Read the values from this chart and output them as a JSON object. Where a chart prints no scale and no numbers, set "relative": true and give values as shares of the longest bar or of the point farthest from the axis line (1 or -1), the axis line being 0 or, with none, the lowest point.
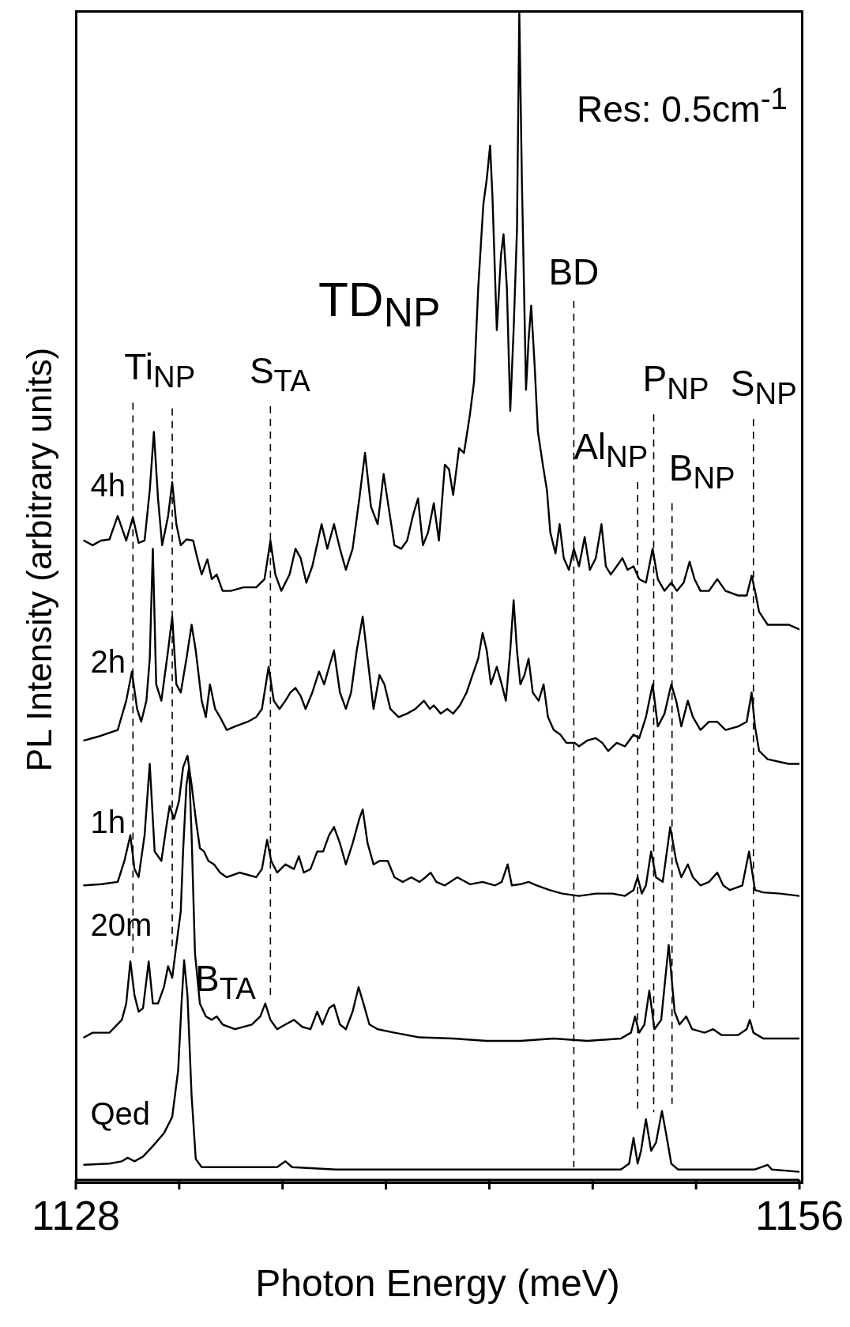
{
  "chart_data": {
    "type": "line",
    "relative": true,
    "xlabel": "Photon Energy (meV)",
    "ylabel": "PL Intensity (arbitrary units)",
    "xlim": [
      1128,
      1156
    ],
    "xticks": [
      1128,
      {
        "value": 1132,
        "label": null
      },
      {
        "value": 1136,
        "label": null
      },
      {
        "value": 1140,
        "label": null
      },
      {
        "value": 1144,
        "label": null
      },
      {
        "value": 1148,
        "label": null
      },
      {
        "value": 1152,
        "label": null
      },
      1156
    ],
    "annotations": [
      "Res: 0.5cm$^{-1}$",
      "TD$_{NP}$",
      {
        "text": "B$_{TA}$",
        "x": 1132.19,
        "y": 0.188
      }
    ],
    "ref_lines": [
      {
        "axis": "x",
        "value": 1130.21,
        "label": "Ti$_{NP}$",
        "line_style": "dashed"
      },
      {
        "axis": "x",
        "value": 1131.73,
        "label": null,
        "line_style": "dashed"
      },
      {
        "axis": "x",
        "value": 1135.53,
        "label": "S$_{TA}$",
        "line_style": "dashed"
      },
      {
        "axis": "x",
        "value": 1147.27,
        "label": "BD",
        "line_style": "dashed"
      },
      {
        "axis": "x",
        "value": 1149.74,
        "label": "Al$_{NP}$",
        "line_style": "dashed"
      },
      {
        "axis": "x",
        "value": 1150.36,
        "label": "P$_{NP}$",
        "line_style": "dashed"
      },
      {
        "axis": "x",
        "value": 1151.07,
        "label": "B$_{NP}$",
        "line_style": "dashed"
      },
      {
        "axis": "x",
        "value": 1154.22,
        "label": "S$_{NP}$",
        "line_style": "dashed"
      }
    ],
    "series": [
      {
        "name": "4h",
        "color": "#000000",
        "x": [
          1128.32,
          1128.65,
          1128.97,
          1129.3,
          1129.62,
          1129.95,
          1130.21,
          1130.43,
          1130.66,
          1130.86,
          1131.02,
          1131.18,
          1131.34,
          1131.57,
          1131.73,
          1131.89,
          1132.06,
          1132.28,
          1132.54,
          1132.7,
          1132.87,
          1133.09,
          1133.26,
          1133.45,
          1133.68,
          1134.0,
          1134.49,
          1134.98,
          1135.3,
          1135.53,
          1135.72,
          1135.95,
          1136.27,
          1136.5,
          1136.7,
          1136.92,
          1137.15,
          1137.51,
          1137.73,
          1137.99,
          1138.22,
          1138.45,
          1138.71,
          1138.97,
          1139.19,
          1139.42,
          1139.68,
          1139.91,
          1140.1,
          1140.33,
          1140.59,
          1140.82,
          1141.04,
          1141.24,
          1141.43,
          1141.63,
          1141.85,
          1142.05,
          1142.28,
          1142.44,
          1142.6,
          1142.83,
          1143.02,
          1143.25,
          1143.41,
          1143.57,
          1143.77,
          1143.9,
          1144.03,
          1144.12,
          1144.29,
          1144.45,
          1144.55,
          1144.68,
          1144.81,
          1144.94,
          1145.07,
          1145.16,
          1145.26,
          1145.42,
          1145.52,
          1145.62,
          1145.75,
          1145.88,
          1146.07,
          1146.23,
          1146.36,
          1146.56,
          1146.72,
          1146.88,
          1147.08,
          1147.27,
          1147.47,
          1147.69,
          1147.89,
          1148.12,
          1148.34,
          1148.51,
          1148.7,
          1148.93,
          1149.15,
          1149.35,
          1149.58,
          1149.8,
          1150.06,
          1150.32,
          1150.52,
          1150.78,
          1151.04,
          1151.26,
          1151.52,
          1151.75,
          1151.94,
          1152.17,
          1152.5,
          1152.82,
          1153.14,
          1153.63,
          1153.96,
          1154.15,
          1154.28,
          1154.44,
          1154.77,
          1155.58,
          1156.0
        ],
        "values": [
          0.547,
          0.543,
          0.547,
          0.548,
          0.568,
          0.547,
          0.567,
          0.545,
          0.547,
          0.59,
          0.64,
          0.583,
          0.543,
          0.568,
          0.597,
          0.561,
          0.543,
          0.548,
          0.547,
          0.532,
          0.518,
          0.531,
          0.514,
          0.518,
          0.504,
          0.504,
          0.507,
          0.507,
          0.514,
          0.547,
          0.518,
          0.504,
          0.518,
          0.54,
          0.532,
          0.511,
          0.525,
          0.561,
          0.54,
          0.561,
          0.54,
          0.522,
          0.54,
          0.583,
          0.622,
          0.576,
          0.561,
          0.604,
          0.576,
          0.543,
          0.54,
          0.547,
          0.568,
          0.583,
          0.543,
          0.554,
          0.579,
          0.547,
          0.612,
          0.608,
          0.586,
          0.626,
          0.622,
          0.655,
          0.683,
          0.763,
          0.835,
          0.856,
          0.885,
          0.842,
          0.727,
          0.791,
          0.809,
          0.763,
          0.658,
          0.727,
          0.813,
          1,
          0.856,
          0.676,
          0.719,
          0.748,
          0.698,
          0.64,
          0.612,
          0.59,
          0.554,
          0.536,
          0.561,
          0.532,
          0.522,
          0.54,
          0.525,
          0.55,
          0.522,
          0.532,
          0.561,
          0.525,
          0.518,
          0.525,
          0.532,
          0.522,
          0.525,
          0.514,
          0.511,
          0.54,
          0.514,
          0.504,
          0.511,
          0.504,
          0.511,
          0.529,
          0.514,
          0.504,
          0.504,
          0.514,
          0.504,
          0.5,
          0.5,
          0.517,
          0.504,
          0.486,
          0.475,
          0.475,
          0.471
        ]
      },
      {
        "name": "2h",
        "color": "#000000",
        "x": [
          1128.32,
          1128.97,
          1129.62,
          1129.95,
          1130.17,
          1130.37,
          1130.53,
          1130.73,
          1130.86,
          1130.98,
          1131.11,
          1131.31,
          1131.57,
          1131.73,
          1131.89,
          1132.06,
          1132.28,
          1132.48,
          1132.64,
          1132.87,
          1133.03,
          1133.19,
          1133.39,
          1133.58,
          1133.84,
          1134.16,
          1134.65,
          1134.98,
          1135.2,
          1135.46,
          1135.66,
          1135.88,
          1136.11,
          1136.3,
          1136.5,
          1136.7,
          1136.89,
          1137.15,
          1137.41,
          1137.61,
          1137.8,
          1137.99,
          1138.22,
          1138.45,
          1138.65,
          1138.87,
          1139.1,
          1139.29,
          1139.52,
          1139.75,
          1139.94,
          1140.17,
          1140.49,
          1140.82,
          1141.14,
          1141.47,
          1141.7,
          1141.85,
          1142.12,
          1142.37,
          1142.6,
          1142.86,
          1143.12,
          1143.35,
          1143.57,
          1143.74,
          1143.9,
          1144.06,
          1144.29,
          1144.48,
          1144.64,
          1144.81,
          1144.94,
          1145.07,
          1145.2,
          1145.36,
          1145.52,
          1145.68,
          1145.91,
          1146.1,
          1146.27,
          1146.49,
          1146.75,
          1146.98,
          1147.3,
          1147.47,
          1147.79,
          1148.12,
          1148.37,
          1148.6,
          1148.93,
          1149.25,
          1149.58,
          1149.8,
          1150.06,
          1150.32,
          1150.52,
          1150.78,
          1151.04,
          1151.23,
          1151.43,
          1151.68,
          1151.88,
          1152.17,
          1152.5,
          1152.82,
          1153.14,
          1153.63,
          1153.96,
          1154.15,
          1154.28,
          1154.44,
          1154.77,
          1155.58,
          1156.0
        ],
        "values": [
          0.376,
          0.38,
          0.385,
          0.41,
          0.435,
          0.403,
          0.392,
          0.41,
          0.446,
          0.54,
          0.424,
          0.41,
          0.453,
          0.482,
          0.424,
          0.417,
          0.446,
          0.475,
          0.453,
          0.41,
          0.396,
          0.424,
          0.403,
          0.396,
          0.385,
          0.388,
          0.392,
          0.396,
          0.403,
          0.439,
          0.41,
          0.403,
          0.41,
          0.417,
          0.421,
          0.414,
          0.403,
          0.417,
          0.435,
          0.424,
          0.439,
          0.453,
          0.417,
          0.403,
          0.417,
          0.453,
          0.482,
          0.446,
          0.403,
          0.432,
          0.424,
          0.403,
          0.396,
          0.399,
          0.403,
          0.41,
          0.403,
          0.406,
          0.399,
          0.403,
          0.399,
          0.406,
          0.417,
          0.432,
          0.446,
          0.468,
          0.453,
          0.424,
          0.439,
          0.424,
          0.41,
          0.453,
          0.496,
          0.453,
          0.424,
          0.432,
          0.446,
          0.417,
          0.41,
          0.424,
          0.396,
          0.385,
          0.381,
          0.374,
          0.374,
          0.371,
          0.376,
          0.378,
          0.374,
          0.367,
          0.374,
          0.371,
          0.381,
          0.378,
          0.396,
          0.424,
          0.388,
          0.399,
          0.424,
          0.41,
          0.388,
          0.41,
          0.396,
          0.385,
          0.392,
          0.392,
          0.385,
          0.388,
          0.392,
          0.417,
          0.388,
          0.367,
          0.36,
          0.356,
          0.356
        ]
      },
      {
        "name": "1h",
        "color": "#000000",
        "x": [
          1128.32,
          1128.97,
          1129.62,
          1129.88,
          1130.11,
          1130.27,
          1130.43,
          1130.66,
          1130.86,
          1131.05,
          1131.31,
          1131.5,
          1131.63,
          1131.8,
          1131.99,
          1132.15,
          1132.32,
          1132.48,
          1132.64,
          1132.8,
          1132.96,
          1133.13,
          1133.35,
          1133.58,
          1133.84,
          1134.33,
          1134.98,
          1135.2,
          1135.4,
          1135.56,
          1135.79,
          1136.11,
          1136.44,
          1136.63,
          1136.82,
          1137.08,
          1137.34,
          1137.57,
          1137.8,
          1137.99,
          1138.22,
          1138.45,
          1138.71,
          1138.97,
          1139.1,
          1139.29,
          1139.52,
          1139.75,
          1140.07,
          1140.33,
          1140.65,
          1140.98,
          1141.3,
          1141.53,
          1141.73,
          1141.95,
          1142.28,
          1142.76,
          1143.25,
          1143.74,
          1144.22,
          1144.48,
          1144.71,
          1144.87,
          1145.2,
          1145.52,
          1145.84,
          1146.33,
          1146.82,
          1147.47,
          1148.12,
          1148.77,
          1149.25,
          1149.58,
          1149.74,
          1149.9,
          1150.06,
          1150.26,
          1150.45,
          1150.71,
          1151.0,
          1151.23,
          1151.43,
          1151.68,
          1151.88,
          1152.17,
          1152.5,
          1152.82,
          1153.05,
          1153.31,
          1153.79,
          1154.05,
          1154.28,
          1154.6,
          1155.25,
          1156.0
        ],
        "values": [
          0.252,
          0.253,
          0.255,
          0.273,
          0.295,
          0.266,
          0.259,
          0.295,
          0.356,
          0.281,
          0.273,
          0.302,
          0.32,
          0.309,
          0.324,
          0.353,
          0.363,
          0.338,
          0.309,
          0.284,
          0.281,
          0.273,
          0.27,
          0.263,
          0.259,
          0.263,
          0.259,
          0.266,
          0.291,
          0.273,
          0.263,
          0.27,
          0.266,
          0.277,
          0.263,
          0.266,
          0.281,
          0.281,
          0.295,
          0.302,
          0.288,
          0.27,
          0.288,
          0.309,
          0.317,
          0.288,
          0.27,
          0.273,
          0.273,
          0.259,
          0.255,
          0.259,
          0.255,
          0.259,
          0.263,
          0.255,
          0.252,
          0.259,
          0.253,
          0.255,
          0.252,
          0.255,
          0.27,
          0.252,
          0.253,
          0.255,
          0.252,
          0.248,
          0.245,
          0.243,
          0.245,
          0.245,
          0.243,
          0.248,
          0.259,
          0.245,
          0.252,
          0.281,
          0.259,
          0.255,
          0.302,
          0.273,
          0.259,
          0.27,
          0.259,
          0.252,
          0.255,
          0.263,
          0.252,
          0.248,
          0.252,
          0.281,
          0.248,
          0.246,
          0.245,
          0.243
        ]
      },
      {
        "name": "20m",
        "color": "#000000",
        "x": [
          1128.32,
          1128.65,
          1129.3,
          1129.78,
          1129.95,
          1130.11,
          1130.27,
          1130.43,
          1130.6,
          1130.82,
          1130.98,
          1131.18,
          1131.41,
          1131.57,
          1131.73,
          1131.89,
          1132.06,
          1132.15,
          1132.28,
          1132.38,
          1132.48,
          1132.61,
          1132.8,
          1133.03,
          1133.26,
          1133.45,
          1133.68,
          1134.16,
          1134.81,
          1135.14,
          1135.33,
          1135.53,
          1135.79,
          1136.11,
          1136.44,
          1136.76,
          1137.08,
          1137.34,
          1137.54,
          1137.8,
          1137.99,
          1138.22,
          1138.45,
          1138.71,
          1138.94,
          1139.13,
          1139.36,
          1139.68,
          1140.33,
          1141.3,
          1142.6,
          1143.9,
          1145.2,
          1146.49,
          1147.79,
          1149.09,
          1149.48,
          1149.64,
          1149.8,
          1150.0,
          1150.19,
          1150.39,
          1150.65,
          1150.94,
          1151.17,
          1151.36,
          1151.62,
          1151.85,
          1152.33,
          1152.66,
          1152.98,
          1153.63,
          1153.96,
          1154.08,
          1154.22,
          1154.6,
          1156.0
        ],
        "values": [
          0.122,
          0.126,
          0.126,
          0.137,
          0.151,
          0.187,
          0.158,
          0.144,
          0.147,
          0.187,
          0.151,
          0.151,
          0.165,
          0.183,
          0.173,
          0.201,
          0.23,
          0.281,
          0.338,
          0.353,
          0.295,
          0.194,
          0.151,
          0.14,
          0.137,
          0.14,
          0.133,
          0.129,
          0.133,
          0.14,
          0.151,
          0.137,
          0.129,
          0.133,
          0.137,
          0.131,
          0.129,
          0.144,
          0.133,
          0.147,
          0.15,
          0.133,
          0.129,
          0.144,
          0.165,
          0.151,
          0.133,
          0.129,
          0.126,
          0.122,
          0.121,
          0.119,
          0.119,
          0.121,
          0.119,
          0.121,
          0.126,
          0.14,
          0.126,
          0.133,
          0.162,
          0.129,
          0.137,
          0.201,
          0.144,
          0.133,
          0.14,
          0.129,
          0.126,
          0.129,
          0.124,
          0.124,
          0.129,
          0.137,
          0.126,
          0.121,
          0.121
        ]
      },
      {
        "name": "Qed",
        "color": "#000000",
        "x": [
          1128.32,
          1129.3,
          1129.78,
          1130.01,
          1130.27,
          1130.6,
          1130.98,
          1131.41,
          1131.73,
          1131.96,
          1132.09,
          1132.19,
          1132.32,
          1132.48,
          1132.64,
          1132.87,
          1134.81,
          1135.79,
          1136.11,
          1136.37,
          1138.06,
          1141.3,
          1144.55,
          1147.79,
          1149.09,
          1149.41,
          1149.58,
          1149.74,
          1149.87,
          1150.06,
          1150.26,
          1150.45,
          1150.68,
          1150.87,
          1151.04,
          1151.3,
          1154.28,
          1154.77,
          1154.93,
          1156.0
        ],
        "values": [
          0.013,
          0.014,
          0.016,
          0.019,
          0.016,
          0.02,
          0.029,
          0.04,
          0.054,
          0.094,
          0.151,
          0.188,
          0.158,
          0.072,
          0.018,
          0.011,
          0.011,
          0.011,
          0.016,
          0.011,
          0.009,
          0.009,
          0.009,
          0.009,
          0.009,
          0.014,
          0.036,
          0.014,
          0.025,
          0.052,
          0.025,
          0.032,
          0.059,
          0.036,
          0.014,
          0.009,
          0.009,
          0.013,
          0.009,
          0.007
        ]
      }
    ]
  }
}
